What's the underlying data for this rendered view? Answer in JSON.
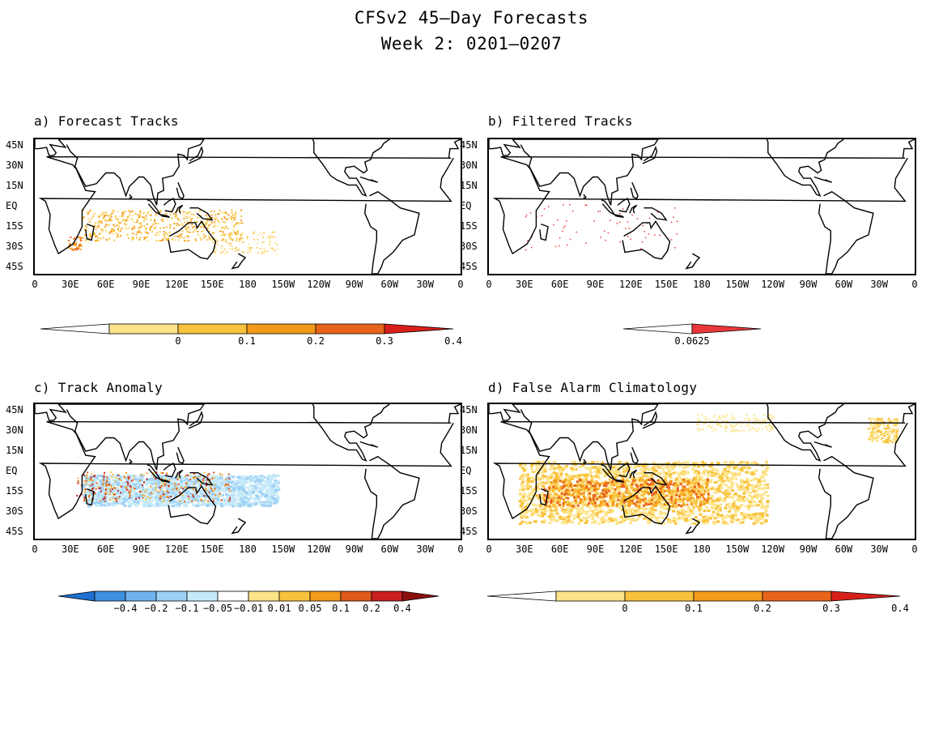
{
  "title": {
    "line1": "CFSv2 45—Day Forecasts",
    "line2": "Week 2: 0201—0207"
  },
  "axes": {
    "lat_ticks": [
      "45N",
      "30N",
      "15N",
      "EQ",
      "15S",
      "30S",
      "45S"
    ],
    "lon_ticks": [
      "0",
      "30E",
      "60E",
      "90E",
      "120E",
      "150E",
      "180",
      "150W",
      "120W",
      "90W",
      "60W",
      "30W",
      "0"
    ]
  },
  "panels": [
    {
      "id": "a",
      "label": "a) Forecast Tracks",
      "colorbar": {
        "labels": [
          "0",
          "0.1",
          "0.2",
          "0.3",
          "0.4"
        ],
        "colors": [
          "#ffffff",
          "#fde48a",
          "#f9c23c",
          "#f39a1a",
          "#e8641a",
          "#d8201a"
        ]
      }
    },
    {
      "id": "b",
      "label": "b) Filtered Tracks",
      "colorbar": {
        "labels": [
          "0.0625"
        ],
        "colors": [
          "#ffffff",
          "#e8383a"
        ]
      }
    },
    {
      "id": "c",
      "label": "c) Track Anomaly",
      "colorbar": {
        "labels": [
          "−0.4",
          "−0.2",
          "−0.1",
          "−0.05",
          "−0.01",
          "0.01",
          "0.05",
          "0.1",
          "0.2",
          "0.4"
        ],
        "colors": [
          "#1f6fd1",
          "#3d8fe0",
          "#6fb3ee",
          "#9dd0f5",
          "#c6eaf8",
          "#ffffff",
          "#fde48a",
          "#f9c23c",
          "#f39a1a",
          "#e05a1a",
          "#c81e1e",
          "#8c0f0f"
        ]
      }
    },
    {
      "id": "d",
      "label": "d) False Alarm Climatology",
      "colorbar": {
        "labels": [
          "0",
          "0.1",
          "0.2",
          "0.3",
          "0.4"
        ],
        "colors": [
          "#ffffff",
          "#fde48a",
          "#f9c23c",
          "#f39a1a",
          "#e8641a",
          "#d8201a"
        ]
      }
    }
  ]
}
